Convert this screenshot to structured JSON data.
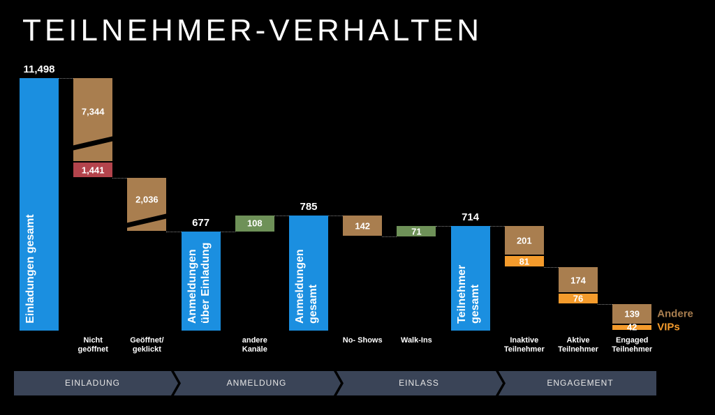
{
  "chart_data": {
    "type": "waterfall",
    "title": "TEILNEHMER-VERHALTEN",
    "categories": [
      "Einladungen gesamt",
      "Nicht geöffnet",
      "Geöffnet/ geklickt",
      "Anmeldungen über Einladung",
      "andere Kanäle",
      "Anmeldungen gesamt",
      "No- Shows",
      "Walk-Ins",
      "Teilnehmer gesamt",
      "Inaktive Teilnehmer",
      "Aktive Teilnehmer",
      "Engaged Teilnehmer"
    ],
    "totals": {
      "color": "#1b8fe0",
      "values": [
        11498,
        null,
        null,
        677,
        null,
        785,
        null,
        null,
        714,
        null,
        null,
        null
      ],
      "value_labels": [
        "11,498",
        null,
        null,
        null,
        null,
        null,
        null,
        null,
        null,
        null,
        null,
        null
      ]
    },
    "increases": {
      "color": "#6e9158",
      "values": [
        null,
        null,
        null,
        null,
        108,
        null,
        null,
        71,
        null,
        null,
        null,
        null
      ]
    },
    "series": [
      {
        "name": "Andere",
        "color": "#a97e4f",
        "values": [
          null,
          7344,
          2036,
          null,
          null,
          null,
          142,
          null,
          null,
          201,
          174,
          139
        ],
        "value_labels": [
          null,
          "7,344",
          "2,036",
          null,
          null,
          null,
          null,
          null,
          null,
          null,
          null,
          null
        ]
      },
      {
        "color": "#b3444c",
        "values": [
          null,
          1441,
          null,
          null,
          null,
          null,
          null,
          null,
          null,
          null,
          null,
          null
        ],
        "value_labels": [
          null,
          "1,441",
          null,
          null,
          null,
          null,
          null,
          null,
          null,
          null,
          null,
          null
        ]
      },
      {
        "name": "VIPs",
        "color": "#f49b2c",
        "values": [
          null,
          null,
          null,
          null,
          null,
          null,
          null,
          null,
          null,
          81,
          76,
          42
        ]
      }
    ],
    "phases": [
      "EINLADUNG",
      "ANMELDUNG",
      "EINLASS",
      "ENGAGEMENT"
    ]
  }
}
